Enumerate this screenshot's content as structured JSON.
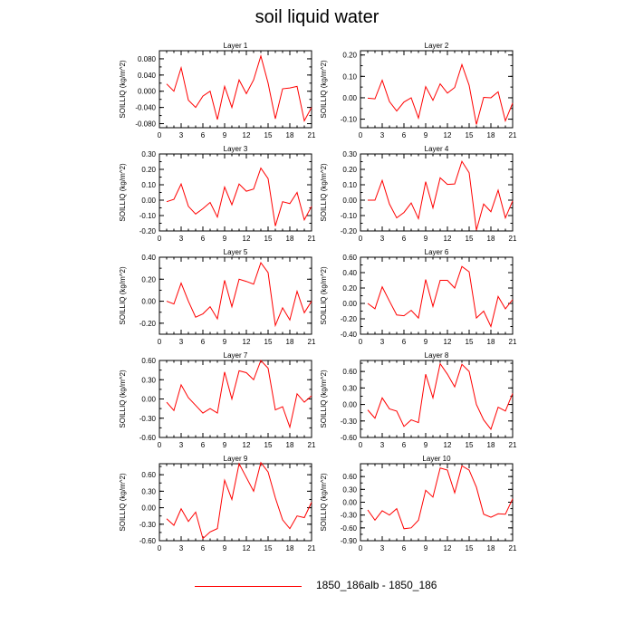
{
  "figure": {
    "title": "soil liquid water",
    "legend": {
      "label": "1850_186alb - 1850_186",
      "color": "#ff0000"
    }
  },
  "chart_data": [
    {
      "type": "line",
      "title": "Layer 1",
      "ylabel": "SOILLIQ  (kg/m^2)",
      "xlim": [
        0,
        21
      ],
      "ylim": [
        -0.09,
        0.1
      ],
      "xticks": [
        0,
        3,
        6,
        9,
        12,
        15,
        18,
        21
      ],
      "yticks": [
        -0.08,
        -0.04,
        0.0,
        0.04,
        0.08
      ],
      "ytick_labels": [
        "-0.080",
        "-0.040",
        "0.000",
        "0.040",
        "0.080"
      ],
      "series": [
        {
          "color": "#ff0000",
          "x": [
            1,
            2,
            3,
            4,
            5,
            6,
            7,
            8,
            9,
            10,
            11,
            12,
            13,
            14,
            15,
            16,
            17,
            18,
            19,
            20,
            21
          ],
          "y": [
            0.018,
            0.0,
            0.058,
            -0.022,
            -0.04,
            -0.012,
            0.0,
            -0.07,
            0.012,
            -0.04,
            0.028,
            -0.006,
            0.028,
            0.087,
            0.02,
            -0.068,
            0.006,
            0.008,
            0.012,
            -0.073,
            -0.04
          ]
        }
      ]
    },
    {
      "type": "line",
      "title": "Layer 2",
      "ylabel": "SOILLIQ  (kg/m^2)",
      "xlim": [
        0,
        21
      ],
      "ylim": [
        -0.14,
        0.22
      ],
      "xticks": [
        0,
        3,
        6,
        9,
        12,
        15,
        18,
        21
      ],
      "yticks": [
        -0.1,
        0.0,
        0.1,
        0.2
      ],
      "ytick_labels": [
        "-0.10",
        "0.00",
        "0.10",
        "0.20"
      ],
      "series": [
        {
          "color": "#ff0000",
          "x": [
            1,
            2,
            3,
            4,
            5,
            6,
            7,
            8,
            9,
            10,
            11,
            12,
            13,
            14,
            15,
            16,
            17,
            18,
            19,
            20,
            21
          ],
          "y": [
            -0.002,
            -0.005,
            0.082,
            -0.018,
            -0.062,
            -0.02,
            0.0,
            -0.095,
            0.052,
            -0.012,
            0.065,
            0.022,
            0.048,
            0.155,
            0.058,
            -0.125,
            0.002,
            0.0,
            0.028,
            -0.108,
            -0.025
          ]
        }
      ]
    },
    {
      "type": "line",
      "title": "Layer 3",
      "ylabel": "SOILLIQ  (kg/m^2)",
      "xlim": [
        0,
        21
      ],
      "ylim": [
        -0.2,
        0.3
      ],
      "xticks": [
        0,
        3,
        6,
        9,
        12,
        15,
        18,
        21
      ],
      "yticks": [
        -0.2,
        -0.1,
        0.0,
        0.1,
        0.2,
        0.3
      ],
      "ytick_labels": [
        "-0.20",
        "-0.10",
        "0.00",
        "0.10",
        "0.20",
        "0.30"
      ],
      "series": [
        {
          "color": "#ff0000",
          "x": [
            1,
            2,
            3,
            4,
            5,
            6,
            7,
            8,
            9,
            10,
            11,
            12,
            13,
            14,
            15,
            16,
            17,
            18,
            19,
            20,
            21
          ],
          "y": [
            -0.01,
            0.005,
            0.105,
            -0.04,
            -0.09,
            -0.055,
            -0.015,
            -0.11,
            0.085,
            -0.03,
            0.105,
            0.058,
            0.072,
            0.208,
            0.14,
            -0.168,
            -0.01,
            -0.022,
            0.05,
            -0.128,
            -0.04
          ]
        }
      ]
    },
    {
      "type": "line",
      "title": "Layer 4",
      "ylabel": "SOILLIQ  (kg/m^2)",
      "xlim": [
        0,
        21
      ],
      "ylim": [
        -0.2,
        0.3
      ],
      "xticks": [
        0,
        3,
        6,
        9,
        12,
        15,
        18,
        21
      ],
      "yticks": [
        -0.2,
        -0.1,
        0.0,
        0.1,
        0.2,
        0.3
      ],
      "ytick_labels": [
        "-0.20",
        "-0.10",
        "0.00",
        "0.10",
        "0.20",
        "0.30"
      ],
      "series": [
        {
          "color": "#ff0000",
          "x": [
            1,
            2,
            3,
            4,
            5,
            6,
            7,
            8,
            9,
            10,
            11,
            12,
            13,
            14,
            15,
            16,
            17,
            18,
            19,
            20,
            21
          ],
          "y": [
            0.0,
            0.0,
            0.128,
            -0.025,
            -0.115,
            -0.08,
            -0.018,
            -0.12,
            0.12,
            -0.05,
            0.145,
            0.102,
            0.105,
            0.252,
            0.178,
            -0.195,
            -0.025,
            -0.075,
            0.065,
            -0.115,
            -0.005
          ]
        }
      ]
    },
    {
      "type": "line",
      "title": "Layer 5",
      "ylabel": "SOILLIQ  (kg/m^2)",
      "xlim": [
        0,
        21
      ],
      "ylim": [
        -0.3,
        0.4
      ],
      "xticks": [
        0,
        3,
        6,
        9,
        12,
        15,
        18,
        21
      ],
      "yticks": [
        -0.2,
        0.0,
        0.2,
        0.4
      ],
      "ytick_labels": [
        "-0.20",
        "0.00",
        "0.20",
        "0.40"
      ],
      "series": [
        {
          "color": "#ff0000",
          "x": [
            1,
            2,
            3,
            4,
            5,
            6,
            7,
            8,
            9,
            10,
            11,
            12,
            13,
            14,
            15,
            16,
            17,
            18,
            19,
            20,
            21
          ],
          "y": [
            0.0,
            -0.025,
            0.165,
            0.0,
            -0.145,
            -0.115,
            -0.05,
            -0.16,
            0.19,
            -0.05,
            0.2,
            0.18,
            0.155,
            0.35,
            0.26,
            -0.22,
            -0.06,
            -0.17,
            0.09,
            -0.105,
            0.0
          ]
        }
      ]
    },
    {
      "type": "line",
      "title": "Layer 6",
      "ylabel": "SOILLIQ  (kg/m^2)",
      "xlim": [
        0,
        21
      ],
      "ylim": [
        -0.4,
        0.6
      ],
      "xticks": [
        0,
        3,
        6,
        9,
        12,
        15,
        18,
        21
      ],
      "yticks": [
        -0.4,
        -0.2,
        0.0,
        0.2,
        0.4,
        0.6
      ],
      "ytick_labels": [
        "-0.40",
        "-0.20",
        "0.00",
        "0.20",
        "0.40",
        "0.60"
      ],
      "series": [
        {
          "color": "#ff0000",
          "x": [
            1,
            2,
            3,
            4,
            5,
            6,
            7,
            8,
            9,
            10,
            11,
            12,
            13,
            14,
            15,
            16,
            17,
            18,
            19,
            20,
            21
          ],
          "y": [
            0.0,
            -0.07,
            0.215,
            0.03,
            -0.15,
            -0.16,
            -0.09,
            -0.19,
            0.31,
            -0.04,
            0.3,
            0.3,
            0.2,
            0.48,
            0.41,
            -0.19,
            -0.1,
            -0.3,
            0.09,
            -0.07,
            0.05
          ]
        }
      ]
    },
    {
      "type": "line",
      "title": "Layer 7",
      "ylabel": "SOILLIQ  (kg/m^2)",
      "xlim": [
        0,
        21
      ],
      "ylim": [
        -0.6,
        0.6
      ],
      "xticks": [
        0,
        3,
        6,
        9,
        12,
        15,
        18,
        21
      ],
      "yticks": [
        -0.6,
        -0.3,
        0.0,
        0.3,
        0.6
      ],
      "ytick_labels": [
        "-0.60",
        "-0.30",
        "0.00",
        "0.30",
        "0.60"
      ],
      "series": [
        {
          "color": "#ff0000",
          "x": [
            1,
            2,
            3,
            4,
            5,
            6,
            7,
            8,
            9,
            10,
            11,
            12,
            13,
            14,
            15,
            16,
            17,
            18,
            19,
            20,
            21
          ],
          "y": [
            -0.05,
            -0.18,
            0.22,
            0.02,
            -0.1,
            -0.22,
            -0.15,
            -0.22,
            0.42,
            0.0,
            0.44,
            0.41,
            0.3,
            0.6,
            0.48,
            -0.17,
            -0.12,
            -0.44,
            0.08,
            -0.05,
            0.05
          ]
        }
      ]
    },
    {
      "type": "line",
      "title": "Layer 8",
      "ylabel": "SOILLIQ  (kg/m^2)",
      "xlim": [
        0,
        21
      ],
      "ylim": [
        -0.6,
        0.8
      ],
      "xticks": [
        0,
        3,
        6,
        9,
        12,
        15,
        18,
        21
      ],
      "yticks": [
        -0.6,
        -0.3,
        0.0,
        0.3,
        0.6
      ],
      "ytick_labels": [
        "-0.60",
        "-0.30",
        "0.00",
        "0.30",
        "0.60"
      ],
      "series": [
        {
          "color": "#ff0000",
          "x": [
            1,
            2,
            3,
            4,
            5,
            6,
            7,
            8,
            9,
            10,
            11,
            12,
            13,
            14,
            15,
            16,
            17,
            18,
            19,
            20,
            21
          ],
          "y": [
            -0.1,
            -0.25,
            0.12,
            -0.08,
            -0.12,
            -0.4,
            -0.28,
            -0.33,
            0.55,
            0.12,
            0.74,
            0.55,
            0.32,
            0.73,
            0.6,
            0.0,
            -0.28,
            -0.45,
            -0.05,
            -0.12,
            0.2
          ]
        }
      ]
    },
    {
      "type": "line",
      "title": "Layer 9",
      "ylabel": "SOILLIQ  (kg/m^2)",
      "xlim": [
        0,
        21
      ],
      "ylim": [
        -0.6,
        0.8
      ],
      "xticks": [
        0,
        3,
        6,
        9,
        12,
        15,
        18,
        21
      ],
      "yticks": [
        -0.6,
        -0.3,
        0.0,
        0.3,
        0.6
      ],
      "ytick_labels": [
        "-0.60",
        "-0.30",
        "0.00",
        "0.30",
        "0.60"
      ],
      "series": [
        {
          "color": "#ff0000",
          "x": [
            1,
            2,
            3,
            4,
            5,
            6,
            7,
            8,
            9,
            10,
            11,
            12,
            13,
            14,
            15,
            16,
            17,
            18,
            19,
            20,
            21
          ],
          "y": [
            -0.2,
            -0.32,
            -0.02,
            -0.25,
            -0.08,
            -0.56,
            -0.44,
            -0.38,
            0.5,
            0.15,
            0.8,
            0.55,
            0.3,
            0.82,
            0.65,
            0.18,
            -0.22,
            -0.38,
            -0.15,
            -0.18,
            0.1
          ]
        }
      ]
    },
    {
      "type": "line",
      "title": "Layer 10",
      "ylabel": "SOILLIQ  (kg/m^2)",
      "xlim": [
        0,
        21
      ],
      "ylim": [
        -0.9,
        0.9
      ],
      "xticks": [
        0,
        3,
        6,
        9,
        12,
        15,
        18,
        21
      ],
      "yticks": [
        -0.9,
        -0.6,
        -0.3,
        0.0,
        0.3,
        0.6
      ],
      "ytick_labels": [
        "-0.90",
        "-0.60",
        "-0.30",
        "0.00",
        "0.30",
        "0.60"
      ],
      "series": [
        {
          "color": "#ff0000",
          "x": [
            1,
            2,
            3,
            4,
            5,
            6,
            7,
            8,
            9,
            10,
            11,
            12,
            13,
            14,
            15,
            16,
            17,
            18,
            19,
            20,
            21
          ],
          "y": [
            -0.18,
            -0.42,
            -0.2,
            -0.3,
            -0.15,
            -0.62,
            -0.6,
            -0.42,
            0.28,
            0.12,
            0.8,
            0.75,
            0.22,
            0.85,
            0.75,
            0.35,
            -0.28,
            -0.35,
            -0.27,
            -0.28,
            0.08
          ]
        }
      ]
    }
  ]
}
